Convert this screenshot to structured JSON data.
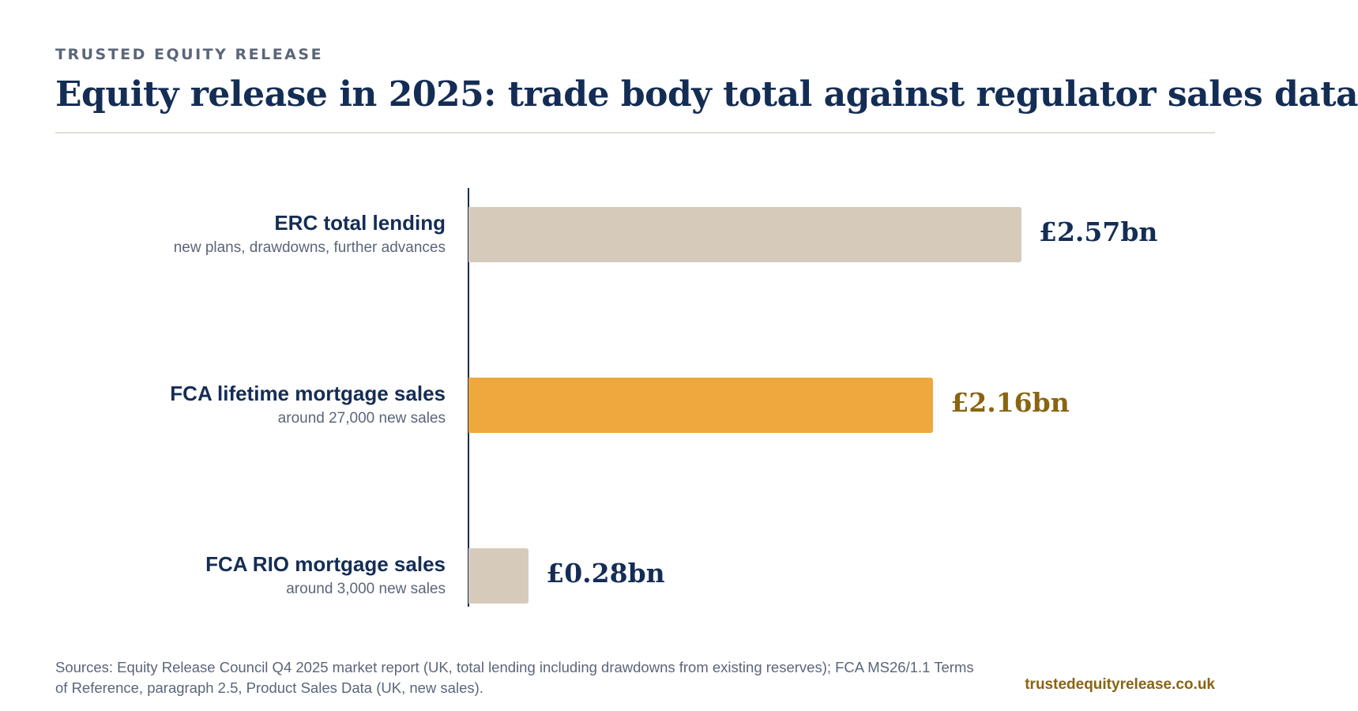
{
  "header": {
    "kicker": "TRUSTED EQUITY RELEASE",
    "title": "Equity release in 2025: trade body total against regulator sales data"
  },
  "chart_data": {
    "type": "bar",
    "orientation": "horizontal",
    "unit": "£bn",
    "categories": [
      {
        "label": "ERC total lending",
        "sublabel": "new plans, drawdowns, further advances",
        "value": 2.57,
        "value_label": "£2.57bn",
        "color": "#d6cbba",
        "label_color": "#142d55"
      },
      {
        "label": "FCA lifetime mortgage sales",
        "sublabel": "around 27,000 new sales",
        "value": 2.16,
        "value_label": "£2.16bn",
        "color": "#eea83d",
        "label_color": "#8a6410"
      },
      {
        "label": "FCA RIO mortgage sales",
        "sublabel": "around 3,000 new sales",
        "value": 0.28,
        "value_label": "£0.28bn",
        "color": "#d6cbba",
        "label_color": "#142d55"
      }
    ],
    "xlim": [
      0,
      2.57
    ],
    "grid": false,
    "legend": "none"
  },
  "footer": {
    "sources": "Sources: Equity Release Council Q4 2025 market report (UK, total lending including drawdowns from existing reserves); FCA MS26/1.1 Terms of Reference, paragraph 2.5, Product Sales Data (UK, new sales).",
    "site": "trustedequityrelease.co.uk"
  }
}
